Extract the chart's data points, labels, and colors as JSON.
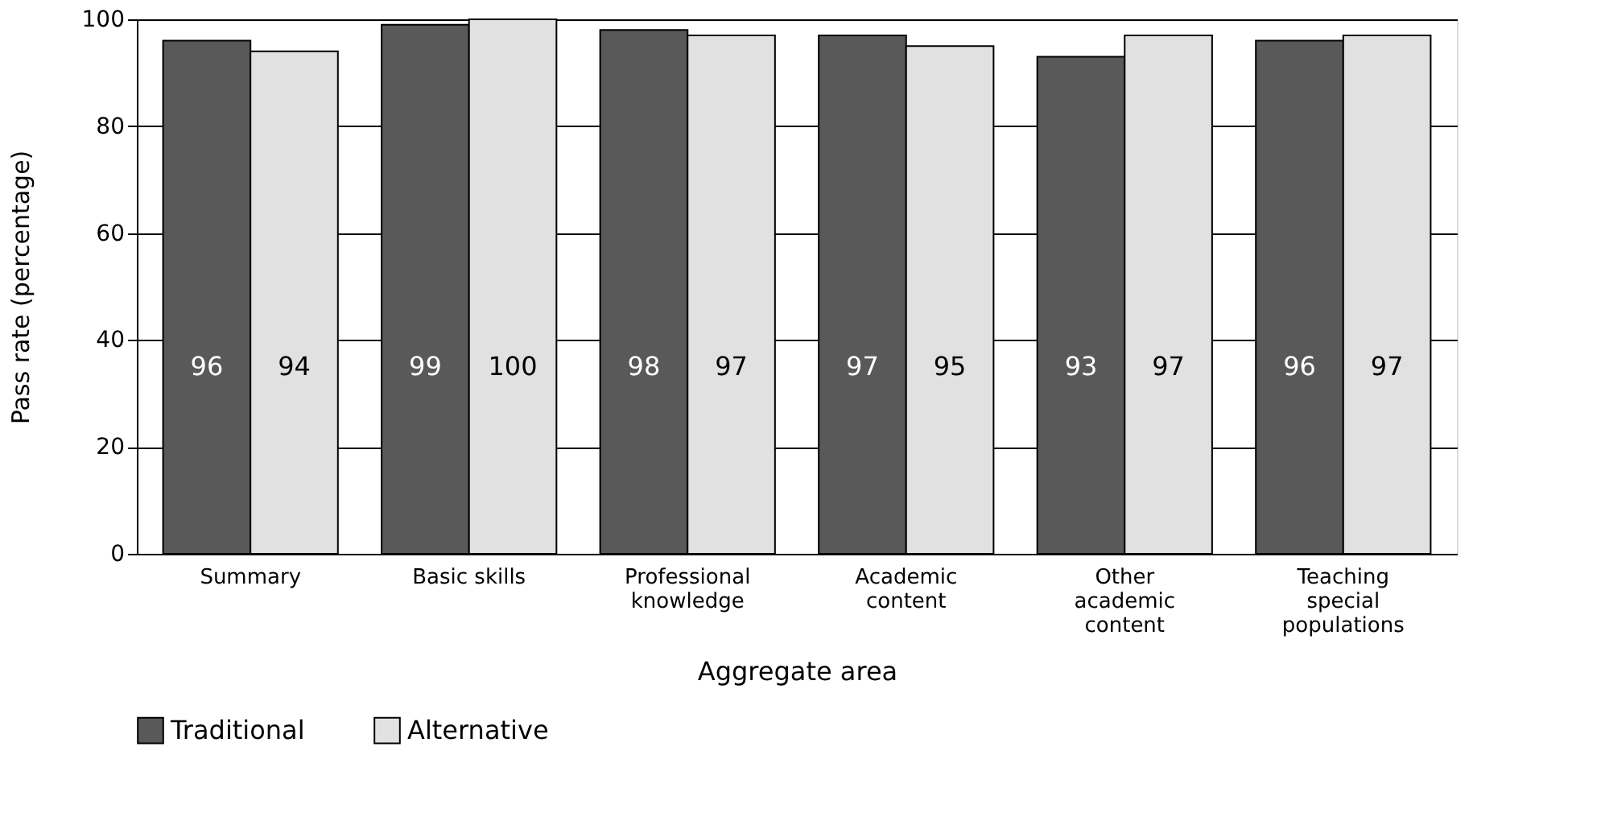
{
  "chart_data": {
    "type": "bar",
    "xlabel": "Aggregate area",
    "ylabel": "Pass rate (percentage)",
    "categories": [
      "Summary",
      "Basic skills",
      "Professional knowledge",
      "Academic content",
      "Other academic content",
      "Teaching special populations"
    ],
    "series": [
      {
        "name": "Traditional",
        "color": "#595959",
        "values": [
          96,
          99,
          98,
          97,
          93,
          96
        ]
      },
      {
        "name": "Alternative",
        "color": "#e1e1e1",
        "values": [
          94,
          100,
          97,
          95,
          97,
          97
        ]
      }
    ],
    "ylim": [
      0,
      100
    ],
    "yticks": [
      0,
      20,
      40,
      60,
      80,
      100
    ],
    "grid": "y",
    "legend": "bottom",
    "data_labels": true
  }
}
